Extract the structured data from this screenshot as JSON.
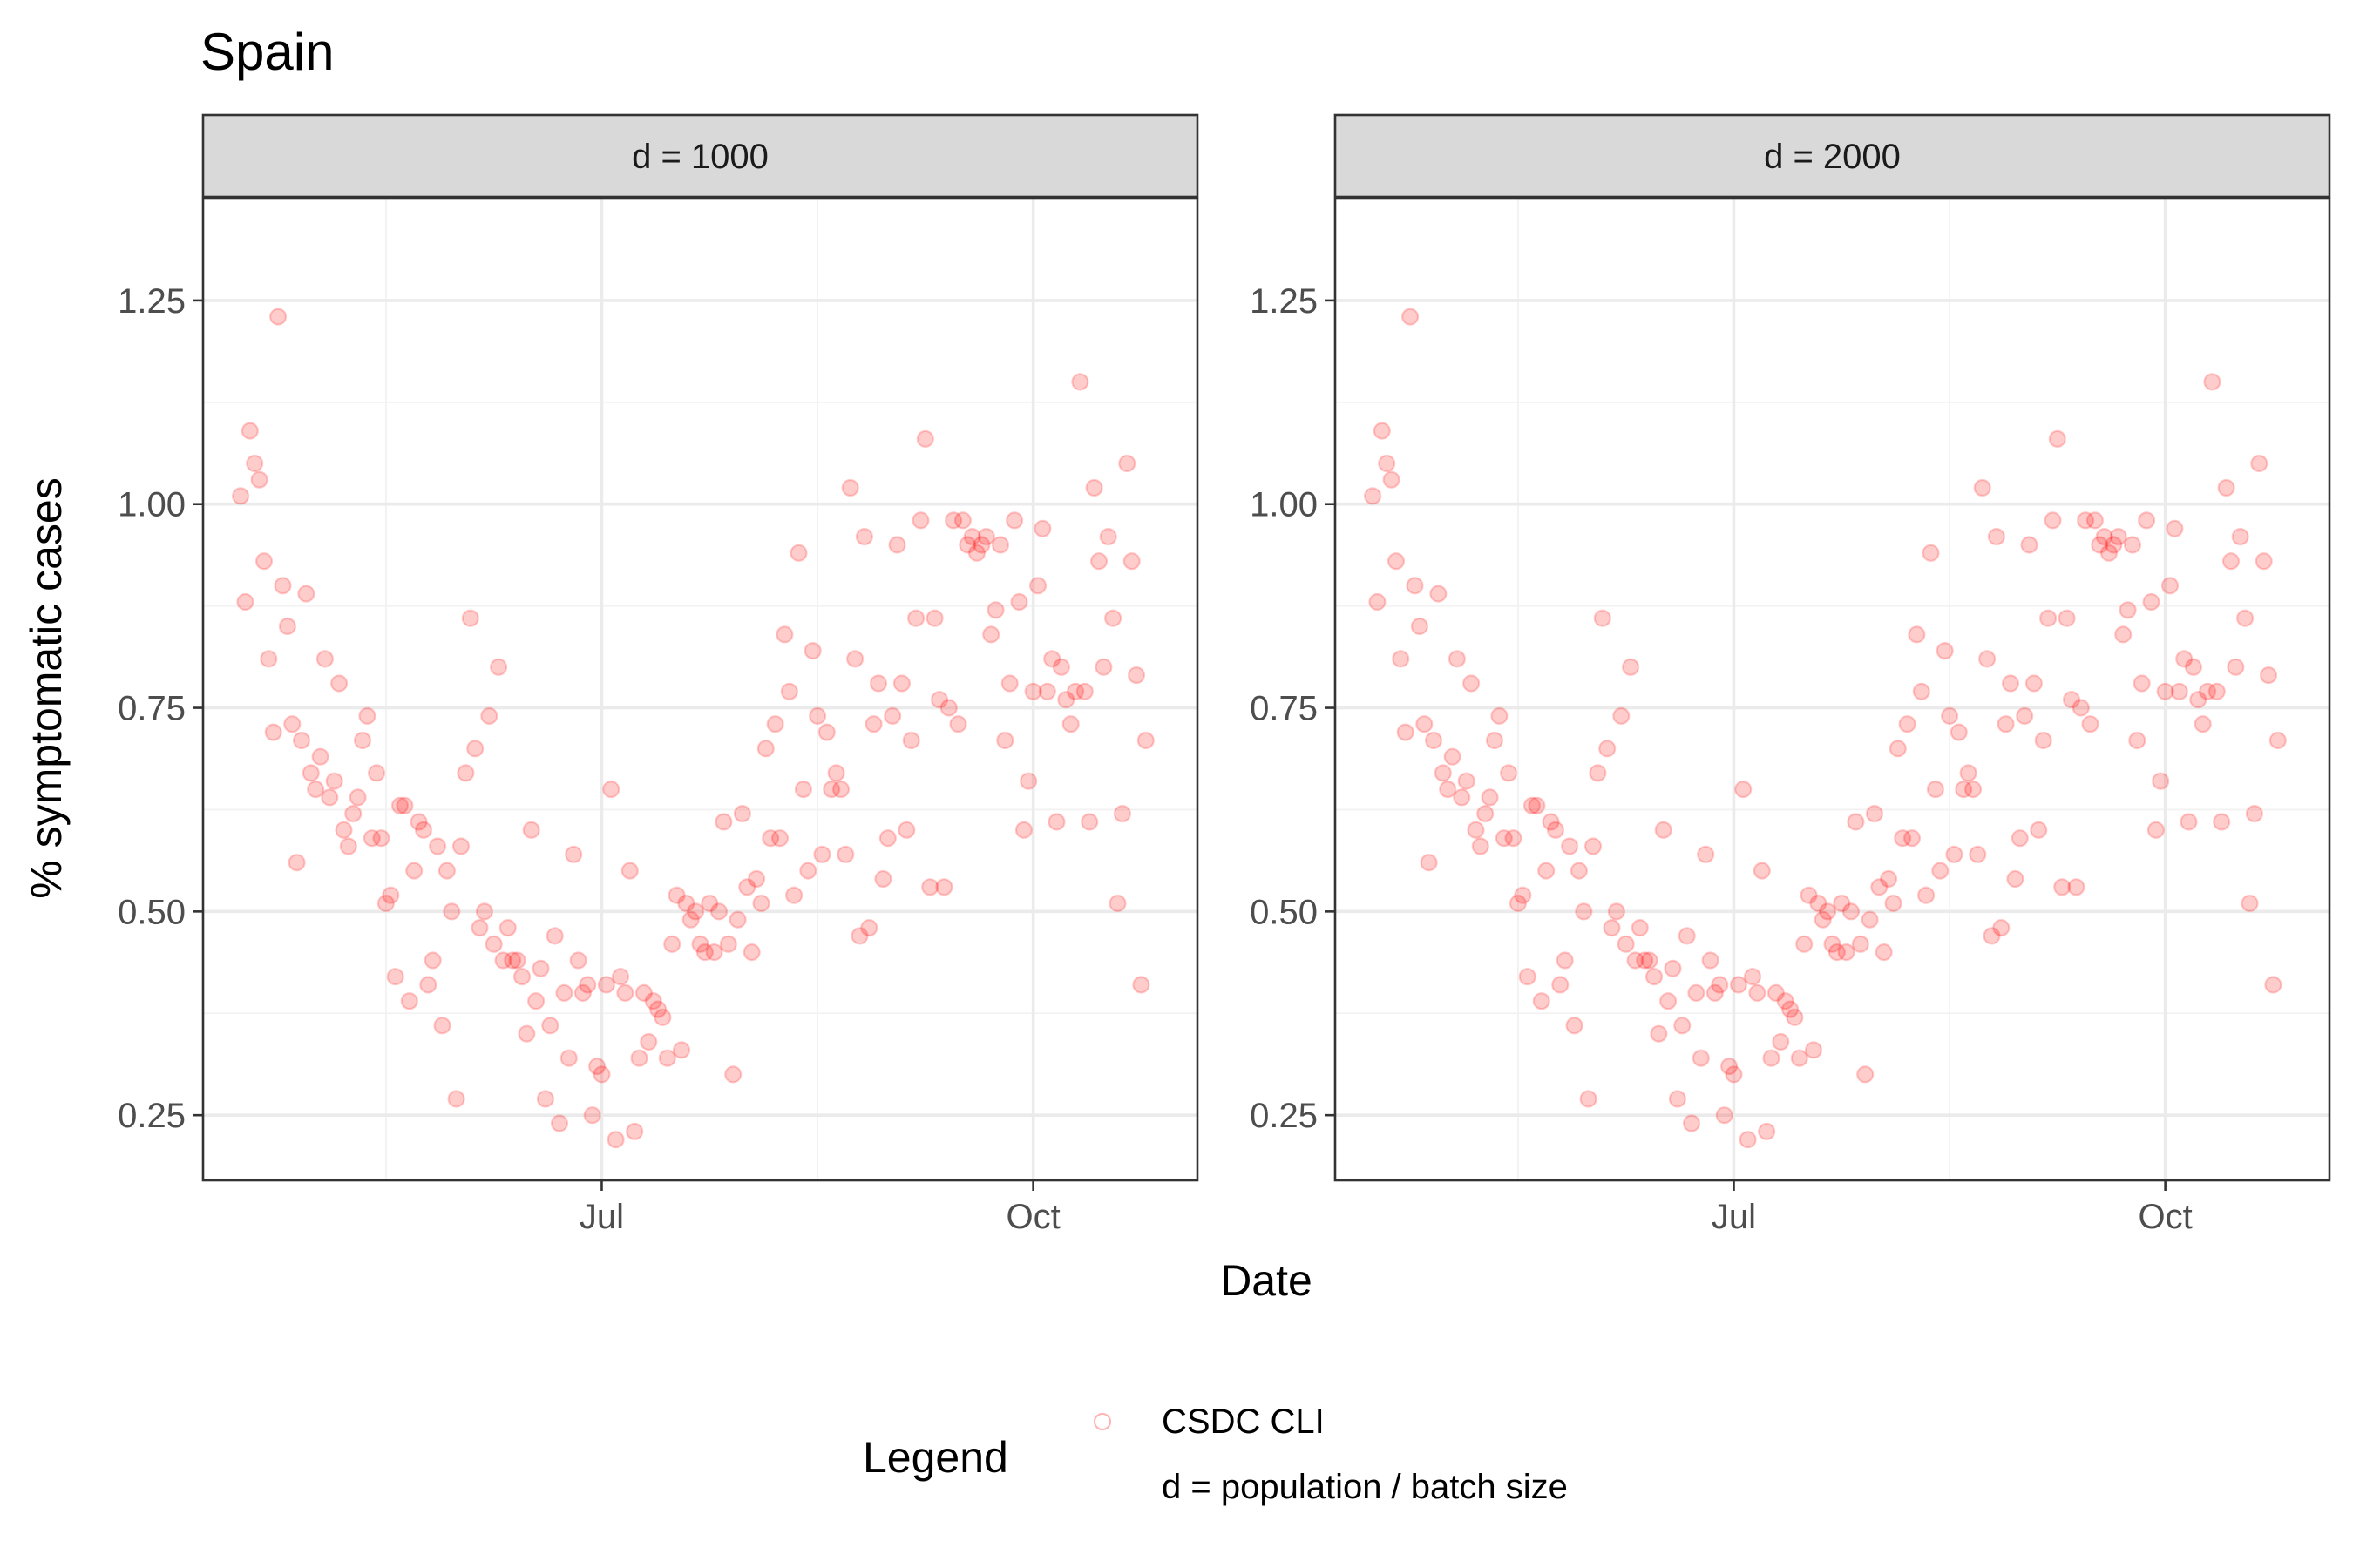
{
  "title": "Spain",
  "chart_data": {
    "type": "scatter",
    "title": "Spain",
    "xlabel": "Date",
    "ylabel": "% symptomatic cases",
    "x_start": "2020-04-15",
    "x_ticks": [
      {
        "label": "Jul",
        "date": "2020-07-01"
      },
      {
        "label": "Oct",
        "date": "2020-10-01"
      }
    ],
    "xlim": [
      "2020-04-07",
      "2020-11-05"
    ],
    "ylim": [
      0.17,
      1.375
    ],
    "y_ticks": [
      "0.25",
      "0.50",
      "0.75",
      "1.00",
      "1.25"
    ],
    "y_tick_values": [
      0.25,
      0.5,
      0.75,
      1.0,
      1.25
    ],
    "grid": true,
    "legend": {
      "title": "Legend",
      "position": "bottom",
      "entries": [
        "CSDC CLI",
        "d = population / batch size"
      ]
    },
    "colors": {
      "points": "#ff0000"
    },
    "panels": [
      {
        "label": "d = 1000"
      },
      {
        "label": "d = 2000"
      }
    ],
    "series": [
      {
        "name": "CSDC CLI",
        "y": [
          1.01,
          0.88,
          1.09,
          1.05,
          1.03,
          0.93,
          0.81,
          0.72,
          1.23,
          0.9,
          0.85,
          0.73,
          0.56,
          0.71,
          0.89,
          0.67,
          0.65,
          0.69,
          0.81,
          0.64,
          0.66,
          0.78,
          0.6,
          0.58,
          0.62,
          0.64,
          0.71,
          0.74,
          0.59,
          0.67,
          0.59,
          0.51,
          0.52,
          0.42,
          0.63,
          0.63,
          0.39,
          0.55,
          0.61,
          0.6,
          0.41,
          0.44,
          0.58,
          0.36,
          0.55,
          0.5,
          0.27,
          0.58,
          0.67,
          0.86,
          0.7,
          0.48,
          0.5,
          0.74,
          0.46,
          0.8,
          0.44,
          0.48,
          0.44,
          0.44,
          0.42,
          0.35,
          0.6,
          0.39,
          0.43,
          0.27,
          0.36,
          0.47,
          0.24,
          0.4,
          0.32,
          0.57,
          0.44,
          0.4,
          0.41,
          0.25,
          0.31,
          0.3,
          0.41,
          0.65,
          0.22,
          0.42,
          0.4,
          0.55,
          0.23,
          0.32,
          0.4,
          0.34,
          0.39,
          0.38,
          0.37,
          0.32,
          0.46,
          0.52,
          0.33,
          0.51,
          0.49,
          0.5,
          0.46,
          0.45,
          0.51,
          0.45,
          0.5,
          0.61,
          0.46,
          0.3,
          0.49,
          0.62,
          0.53,
          0.45,
          0.54,
          0.51,
          0.7,
          0.59,
          0.73,
          0.59,
          0.84,
          0.77,
          0.52,
          0.94,
          0.65,
          0.55,
          0.82,
          0.74,
          0.57,
          0.72,
          0.65,
          0.67,
          0.65,
          0.57,
          1.02,
          0.81,
          0.47,
          0.96,
          0.48,
          0.73,
          0.78,
          0.54,
          0.59,
          0.74,
          0.95,
          0.78,
          0.6,
          0.71,
          0.86,
          0.98,
          1.08,
          0.53,
          0.86,
          0.76,
          0.53,
          0.75,
          0.98,
          0.73,
          0.98,
          0.95,
          0.96,
          0.94,
          0.95,
          0.96,
          0.84,
          0.87,
          0.95,
          0.71,
          0.78,
          0.98,
          0.88,
          0.6,
          0.66,
          0.77,
          0.9,
          0.97,
          0.77,
          0.81,
          0.61,
          0.8,
          0.76,
          0.73,
          0.77,
          1.15,
          0.77,
          0.61,
          1.02,
          0.93,
          0.8,
          0.96,
          0.86,
          0.51,
          0.62,
          1.05,
          0.93,
          0.79,
          0.41,
          0.71
        ]
      }
    ]
  }
}
